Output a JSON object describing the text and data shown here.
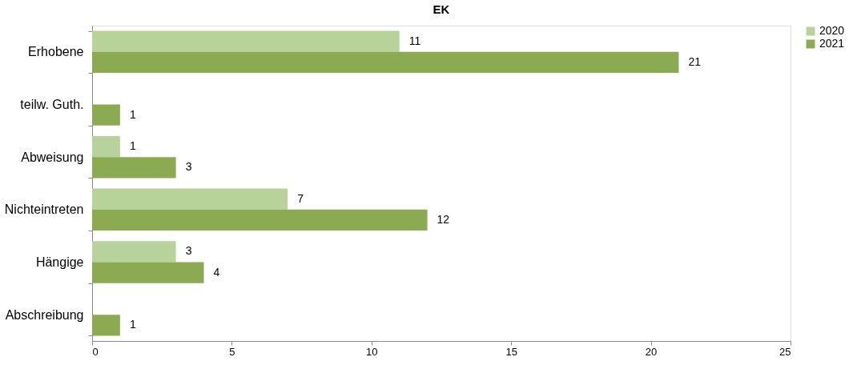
{
  "chart_data": {
    "type": "bar",
    "title": "EK",
    "orientation": "horizontal",
    "categories": [
      "Erhobene",
      "teilw. Guth.",
      "Abweisung",
      "Nichteintreten",
      "Hängige",
      "Abschreibung"
    ],
    "series": [
      {
        "name": "2020",
        "color": "#b7d29a",
        "values": [
          11,
          null,
          1,
          7,
          3,
          null
        ]
      },
      {
        "name": "2021",
        "color": "#8caa52",
        "values": [
          21,
          1,
          3,
          12,
          4,
          1
        ]
      }
    ],
    "xlim": [
      0,
      25
    ],
    "xticks": [
      0,
      5,
      10,
      15,
      20,
      25
    ],
    "grid": false,
    "legend": "right",
    "data_labels": true
  }
}
